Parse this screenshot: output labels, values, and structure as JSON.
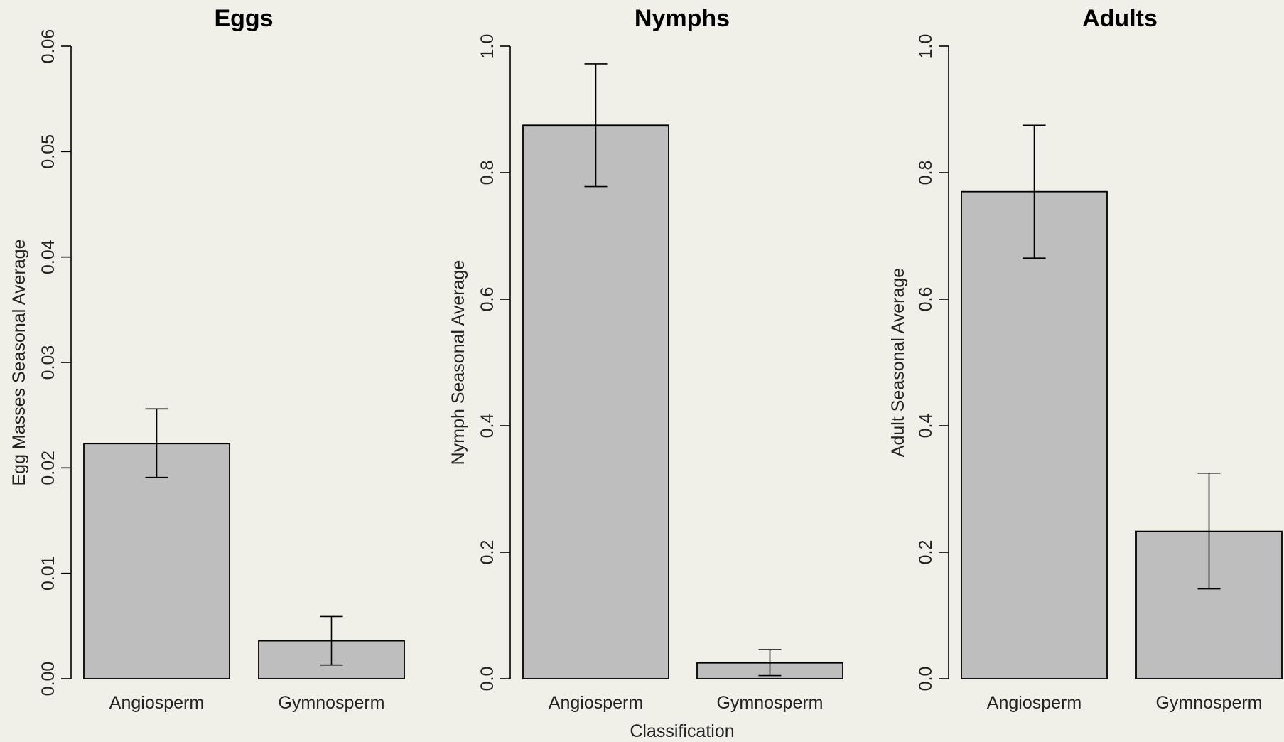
{
  "chart_data": [
    {
      "type": "bar",
      "title": "Eggs",
      "ylabel": "Egg Masses Seasonal Average",
      "xlabel": "",
      "categories": [
        "Angiosperm",
        "Gymnosperm"
      ],
      "values": [
        0.0223,
        0.0036
      ],
      "error_low": [
        0.0191,
        0.0013
      ],
      "error_high": [
        0.0256,
        0.0059
      ],
      "ylim": [
        0,
        0.06
      ],
      "yticks": [
        "0.00",
        "0.01",
        "0.02",
        "0.03",
        "0.04",
        "0.05",
        "0.06"
      ],
      "bar_color": "#bebebe",
      "grid": false
    },
    {
      "type": "bar",
      "title": "Nymphs",
      "ylabel": "Nymph Seasonal Average",
      "xlabel": "Classification",
      "categories": [
        "Angiosperm",
        "Gymnosperm"
      ],
      "values": [
        0.875,
        0.025
      ],
      "error_low": [
        0.778,
        0.005
      ],
      "error_high": [
        0.972,
        0.046
      ],
      "ylim": [
        0,
        1.0
      ],
      "yticks": [
        "0.0",
        "0.2",
        "0.4",
        "0.6",
        "0.8",
        "1.0"
      ],
      "bar_color": "#bebebe",
      "grid": false
    },
    {
      "type": "bar",
      "title": "Adults",
      "ylabel": "Adult Seasonal Average",
      "xlabel": "",
      "categories": [
        "Angiosperm",
        "Gymnosperm"
      ],
      "values": [
        0.77,
        0.233
      ],
      "error_low": [
        0.665,
        0.142
      ],
      "error_high": [
        0.875,
        0.325
      ],
      "ylim": [
        0,
        1.0
      ],
      "yticks": [
        "0.0",
        "0.2",
        "0.4",
        "0.6",
        "0.8",
        "1.0"
      ],
      "bar_color": "#bebebe",
      "grid": false
    }
  ]
}
